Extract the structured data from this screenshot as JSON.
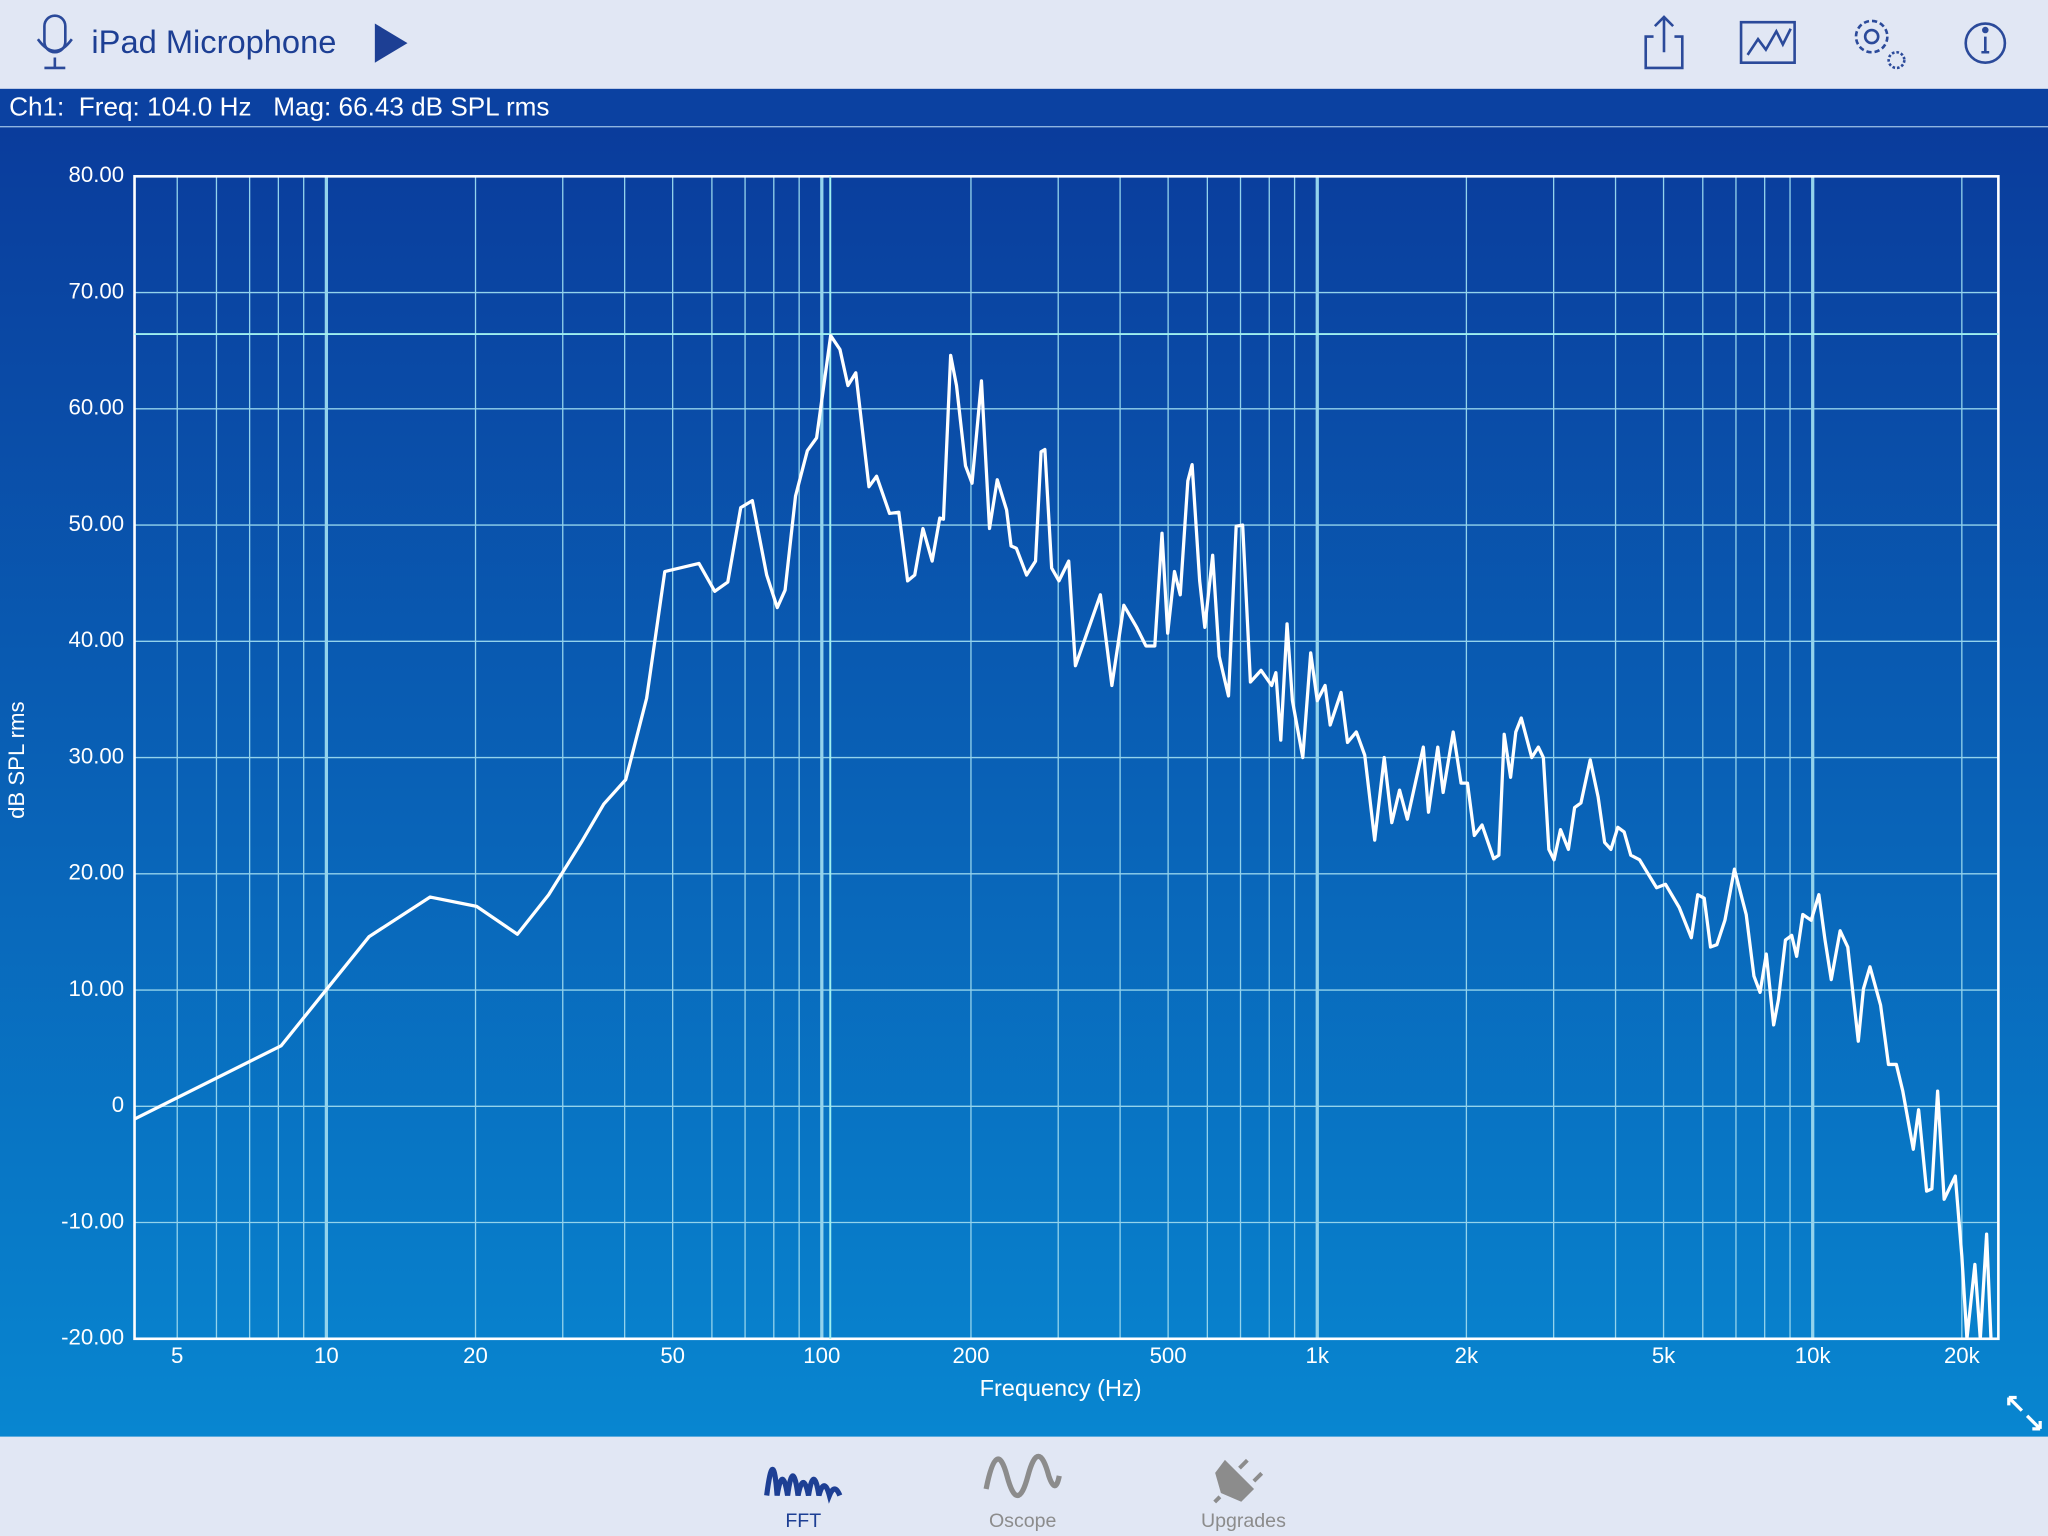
{
  "app": {
    "title": "iPad Microphone",
    "readout": "Ch1:  Freq: 104.0 Hz   Mag: 66.43 dB SPL rms"
  },
  "tabs": [
    {
      "label": "FFT"
    },
    {
      "label": "Oscope"
    },
    {
      "label": "Upgrades"
    }
  ],
  "chart_data": {
    "type": "line",
    "xlabel": "Frequency (Hz)",
    "ylabel": "dB SPL rms",
    "xscale": "log",
    "grid": true,
    "color": "#ffffff",
    "xlim": [
      4.1,
      23700
    ],
    "ylim": [
      -20,
      80
    ],
    "xticks": [
      5,
      10,
      20,
      50,
      100,
      200,
      500,
      {
        "value": 1000,
        "label": "1k"
      },
      {
        "value": 2000,
        "label": "2k"
      },
      {
        "value": 5000,
        "label": "5k"
      },
      {
        "value": 10000,
        "label": "10k"
      },
      {
        "value": 20000,
        "label": "20k"
      }
    ],
    "xminorticks": [
      6,
      7,
      8,
      9,
      30,
      40,
      60,
      70,
      80,
      90,
      300,
      400,
      600,
      700,
      800,
      900,
      3000,
      4000,
      6000,
      7000,
      8000,
      9000
    ],
    "yticks": [
      {
        "value": 80,
        "label": "80.00"
      },
      {
        "value": 70,
        "label": "70.00"
      },
      {
        "value": 60,
        "label": "60.00"
      },
      {
        "value": 50,
        "label": "50.00"
      },
      {
        "value": 40,
        "label": "40.00"
      },
      {
        "value": 30,
        "label": "30.00"
      },
      {
        "value": 20,
        "label": "20.00"
      },
      {
        "value": 10,
        "label": "10.00"
      },
      0,
      {
        "value": -10,
        "label": "-10.00"
      },
      {
        "value": -20,
        "label": "-20.00"
      }
    ],
    "cursor": {
      "x": 104,
      "y": 66.43
    },
    "x": [
      4.1,
      8.1,
      12.2,
      16.2,
      20.1,
      24.3,
      28.1,
      32.7,
      36.3,
      40.2,
      44.3,
      48.2,
      56.5,
      60.8,
      64.6,
      68.6,
      72.4,
      77.4,
      81.3,
      84.3,
      88.5,
      93.5,
      97.6,
      104.2,
      108.8,
      112.9,
      117.1,
      124.5,
      129,
      137,
      143,
      149,
      154,
      160,
      167,
      173,
      176,
      182,
      187,
      195,
      201,
      210,
      218,
      226,
      236,
      241,
      247,
      259,
      270,
      277,
      282,
      291,
      301,
      315,
      325,
      339,
      365,
      385,
      407,
      432,
      451,
      470,
      486,
      499,
      515,
      529,
      548,
      559,
      579,
      593,
      615,
      634,
      662,
      686,
      707,
      733,
      770,
      809,
      825,
      844,
      869,
      891,
      935,
      970,
      1000,
      1037,
      1062,
      1117,
      1151,
      1199,
      1247,
      1306,
      1365,
      1414,
      1466,
      1520,
      1637,
      1677,
      1751,
      1795,
      1881,
      1951,
      2010,
      2075,
      2151,
      2270,
      2326,
      2384,
      2456,
      2516,
      2581,
      2710,
      2794,
      2860,
      2934,
      3006,
      3097,
      3213,
      3307,
      3406,
      3556,
      3689,
      3802,
      3915,
      4043,
      4163,
      4293,
      4474,
      4668,
      4841,
      5045,
      5378,
      5689,
      5860,
      6040,
      6220,
      6405,
      6650,
      6950,
      7341,
      7610,
      7830,
      8060,
      8340,
      8530,
      8810,
      9070,
      9280,
      9550,
      9930,
      10290,
      10590,
      10900,
      11360,
      11770,
      12360,
      12660,
      13050,
      13710,
      14220,
      14750,
      15200,
      15960,
      16360,
      16980,
      17400,
      17870,
      18420,
      19400,
      20000,
      20480,
      21250,
      21790,
      22440,
      22900
    ],
    "values": [
      -1.1,
      5.2,
      14.6,
      18.0,
      17.2,
      14.8,
      18.2,
      22.7,
      26.0,
      28.1,
      35.1,
      46.0,
      46.7,
      44.3,
      45.1,
      51.5,
      52.1,
      45.7,
      42.9,
      44.4,
      52.5,
      56.4,
      57.5,
      66.3,
      65.1,
      62.0,
      63.1,
      53.3,
      54.2,
      51.0,
      51.1,
      45.2,
      45.7,
      49.7,
      46.9,
      50.6,
      50.5,
      64.6,
      62.0,
      55.1,
      53.6,
      62.4,
      49.7,
      53.9,
      51.3,
      48.2,
      48.0,
      45.7,
      46.9,
      56.3,
      56.5,
      46.3,
      45.2,
      46.9,
      37.9,
      40.1,
      44.0,
      36.2,
      43.1,
      41.2,
      39.6,
      39.6,
      49.3,
      40.7,
      46.0,
      44.0,
      53.8,
      55.2,
      45.2,
      41.2,
      47.4,
      38.7,
      35.3,
      49.9,
      50.0,
      36.5,
      37.5,
      36.2,
      37.3,
      31.5,
      41.5,
      34.9,
      30.0,
      39.0,
      34.9,
      36.2,
      32.8,
      35.6,
      31.3,
      32.2,
      30.2,
      22.9,
      30.0,
      24.4,
      27.2,
      24.7,
      30.9,
      25.3,
      30.9,
      27.0,
      32.2,
      27.8,
      27.8,
      23.3,
      24.2,
      21.3,
      21.6,
      32.0,
      28.3,
      32.2,
      33.4,
      30.0,
      30.9,
      30.0,
      22.1,
      21.2,
      23.8,
      22.1,
      25.7,
      26.1,
      29.8,
      26.6,
      22.7,
      22.1,
      24.0,
      23.6,
      21.6,
      21.2,
      19.9,
      18.8,
      19.1,
      17.1,
      14.5,
      18.2,
      17.9,
      13.7,
      13.9,
      16.0,
      20.4,
      16.5,
      11.2,
      9.8,
      13.1,
      7.0,
      9.2,
      14.3,
      14.7,
      12.9,
      16.5,
      16.0,
      18.2,
      14.3,
      10.9,
      15.1,
      13.7,
      5.6,
      10.1,
      12.0,
      8.7,
      3.6,
      3.6,
      1.3,
      -3.7,
      -0.3,
      -7.3,
      -7.1,
      1.3,
      -8.0,
      -6.0,
      -12.9,
      -20,
      -13.6,
      -20,
      -11.0,
      -20
    ]
  }
}
